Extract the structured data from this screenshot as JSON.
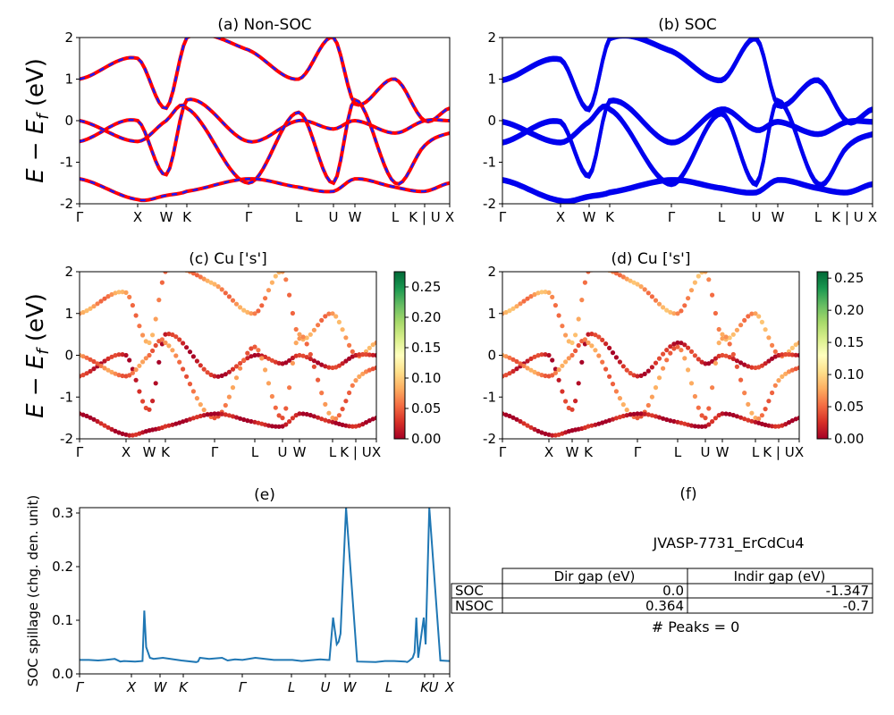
{
  "chart_data": [
    {
      "id": "a",
      "type": "line",
      "title": "(a) Non-SOC",
      "ylabel": "$E - E_f$ (eV)",
      "ylim": [
        -2,
        2
      ],
      "yticks": [
        -2,
        -1,
        0,
        1,
        2
      ],
      "xtick_labels": [
        "Γ",
        "X",
        "W",
        "K",
        "Γ",
        "L",
        "U",
        "W",
        "L",
        "K | U",
        "X"
      ],
      "series": [
        {
          "color": "#ff0000",
          "values": [
            1.0,
            1.5,
            0.3,
            2.0,
            1.7,
            1.0,
            2.0,
            0.4,
            1.0,
            0.0,
            0.3
          ]
        },
        {
          "color": "#ff0000",
          "values": [
            -0.5,
            0.0,
            -1.3,
            0.5,
            -0.5,
            0.0,
            -0.2,
            0.0,
            -0.3,
            0.0,
            0.0
          ]
        },
        {
          "color": "#ff0000",
          "values": [
            0.0,
            -0.5,
            0.0,
            0.3,
            -1.5,
            0.2,
            -1.5,
            0.5,
            -1.5,
            -0.6,
            -0.3
          ]
        },
        {
          "color": "#ff0000",
          "values": [
            -1.4,
            -1.9,
            -1.8,
            -1.7,
            -1.4,
            -1.6,
            -1.7,
            -1.4,
            -1.6,
            -1.7,
            -1.5
          ]
        }
      ]
    },
    {
      "id": "b",
      "type": "line",
      "title": "(b) SOC",
      "ylim": [
        -2,
        2
      ],
      "yticks": [
        -2,
        -1,
        0,
        1,
        2
      ],
      "xtick_labels": [
        "Γ",
        "X",
        "W",
        "K",
        "Γ",
        "L",
        "U",
        "W",
        "L",
        "K | U",
        "X"
      ],
      "series": [
        {
          "color": "#0000ee",
          "values": [
            1.0,
            1.5,
            0.3,
            2.0,
            1.7,
            1.0,
            2.0,
            0.4,
            1.0,
            0.0,
            0.3
          ]
        },
        {
          "color": "#0000ee",
          "values": [
            -0.5,
            0.0,
            -1.3,
            0.5,
            -0.5,
            0.3,
            -0.2,
            0.0,
            -0.3,
            0.0,
            0.0
          ]
        },
        {
          "color": "#0000ee",
          "values": [
            0.0,
            -0.5,
            0.0,
            0.3,
            -1.5,
            0.2,
            -1.5,
            0.5,
            -1.5,
            -0.6,
            -0.3
          ]
        },
        {
          "color": "#0000ee",
          "values": [
            -1.4,
            -1.9,
            -1.8,
            -1.7,
            -1.4,
            -1.6,
            -1.7,
            -1.4,
            -1.6,
            -1.7,
            -1.5
          ]
        }
      ]
    },
    {
      "id": "c",
      "type": "scatter",
      "title": "(c)  Cu ['s']",
      "ylabel": "$E - E_f$ (eV)",
      "ylim": [
        -2,
        2
      ],
      "yticks": [
        -2,
        -1,
        0,
        1,
        2
      ],
      "xtick_labels": [
        "Γ",
        "X",
        "W",
        "K",
        "Γ",
        "L",
        "U",
        "W",
        "L",
        "K | U",
        "X"
      ],
      "colorbar": {
        "range": [
          0.0,
          0.275
        ],
        "ticks": [
          "0.00",
          "0.05",
          "0.10",
          "0.15",
          "0.20",
          "0.25"
        ]
      },
      "series": [
        {
          "values": [
            1.0,
            1.5,
            0.3,
            2.0,
            1.7,
            1.0,
            2.0,
            0.4,
            1.0,
            0.0,
            0.3
          ],
          "weight": 0.07
        },
        {
          "values": [
            -0.5,
            0.0,
            -1.3,
            0.5,
            -0.5,
            0.0,
            -0.2,
            0.0,
            -0.3,
            0.0,
            0.0
          ],
          "weight": 0.02
        },
        {
          "values": [
            0.0,
            -0.5,
            0.0,
            0.3,
            -1.5,
            0.2,
            -1.5,
            0.5,
            -1.5,
            -0.6,
            -0.3
          ],
          "weight": 0.06
        },
        {
          "values": [
            -1.4,
            -1.9,
            -1.8,
            -1.7,
            -1.4,
            -1.6,
            -1.7,
            -1.4,
            -1.6,
            -1.7,
            -1.5
          ],
          "weight": 0.01
        }
      ]
    },
    {
      "id": "d",
      "type": "scatter",
      "title": "(d) Cu ['s']",
      "ylim": [
        -2,
        2
      ],
      "yticks": [
        -2,
        -1,
        0,
        1,
        2
      ],
      "xtick_labels": [
        "Γ",
        "X",
        "W",
        "K",
        "Γ",
        "L",
        "U",
        "W",
        "L",
        "K | U",
        "X"
      ],
      "colorbar": {
        "range": [
          0.0,
          0.26
        ],
        "ticks": [
          "0.00",
          "0.05",
          "0.10",
          "0.15",
          "0.20",
          "0.25"
        ]
      },
      "series": [
        {
          "values": [
            1.0,
            1.5,
            0.3,
            2.0,
            1.7,
            1.0,
            2.0,
            0.4,
            1.0,
            0.0,
            0.3
          ],
          "weight": 0.07
        },
        {
          "values": [
            -0.5,
            0.0,
            -1.3,
            0.5,
            -0.5,
            0.3,
            -0.2,
            0.0,
            -0.3,
            0.0,
            0.0
          ],
          "weight": 0.02
        },
        {
          "values": [
            0.0,
            -0.5,
            0.0,
            0.3,
            -1.5,
            0.2,
            -1.5,
            0.5,
            -1.5,
            -0.6,
            -0.3
          ],
          "weight": 0.06
        },
        {
          "values": [
            -1.4,
            -1.9,
            -1.8,
            -1.7,
            -1.4,
            -1.6,
            -1.7,
            -1.4,
            -1.6,
            -1.7,
            -1.5
          ],
          "weight": 0.01
        }
      ]
    },
    {
      "id": "e",
      "type": "line",
      "title": "(e)",
      "ylabel": "SOC spillage (chg. den. unit)",
      "ylim": [
        0.0,
        0.31
      ],
      "yticks": [
        "0.0",
        "0.1",
        "0.2",
        "0.3"
      ],
      "xtick_labels": [
        "Γ",
        "X",
        "W",
        "K",
        "Γ",
        "L",
        "U",
        "W",
        "L",
        "K",
        "U",
        "X"
      ],
      "series": [
        {
          "color": "#1f77b4",
          "x": [
            0,
            5,
            10,
            14,
            19,
            22,
            24,
            30,
            34,
            35,
            36,
            38,
            40,
            45,
            55,
            63,
            64,
            65,
            70,
            77,
            80,
            82,
            84,
            88,
            95,
            105,
            112,
            115,
            120,
            130,
            134,
            135,
            137,
            139,
            140,
            141,
            144,
            150,
            160,
            165,
            170,
            176,
            177,
            178,
            180,
            181,
            182,
            183,
            186,
            187,
            189,
            195,
            200
          ],
          "values": [
            0.026,
            0.026,
            0.025,
            0.026,
            0.028,
            0.023,
            0.024,
            0.023,
            0.024,
            0.118,
            0.05,
            0.03,
            0.028,
            0.03,
            0.025,
            0.022,
            0.023,
            0.03,
            0.028,
            0.03,
            0.025,
            0.026,
            0.027,
            0.026,
            0.03,
            0.026,
            0.026,
            0.026,
            0.024,
            0.027,
            0.026,
            0.026,
            0.105,
            0.055,
            0.06,
            0.075,
            0.31,
            0.023,
            0.022,
            0.024,
            0.024,
            0.023,
            0.022,
            0.024,
            0.03,
            0.04,
            0.105,
            0.03,
            0.105,
            0.055,
            0.31,
            0.025,
            0.024
          ]
        }
      ]
    }
  ],
  "panel_f": {
    "title": "(f)",
    "material": "JVASP-7731_ErCdCu4",
    "columns": [
      "Dir gap (eV)",
      "Indir gap (eV)"
    ],
    "rows": [
      {
        "label": "SOC",
        "dir": "0.0",
        "indir": "-1.347"
      },
      {
        "label": "NSOC",
        "dir": "0.364",
        "indir": "-0.7"
      }
    ],
    "peaks": "# Peaks = 0"
  }
}
